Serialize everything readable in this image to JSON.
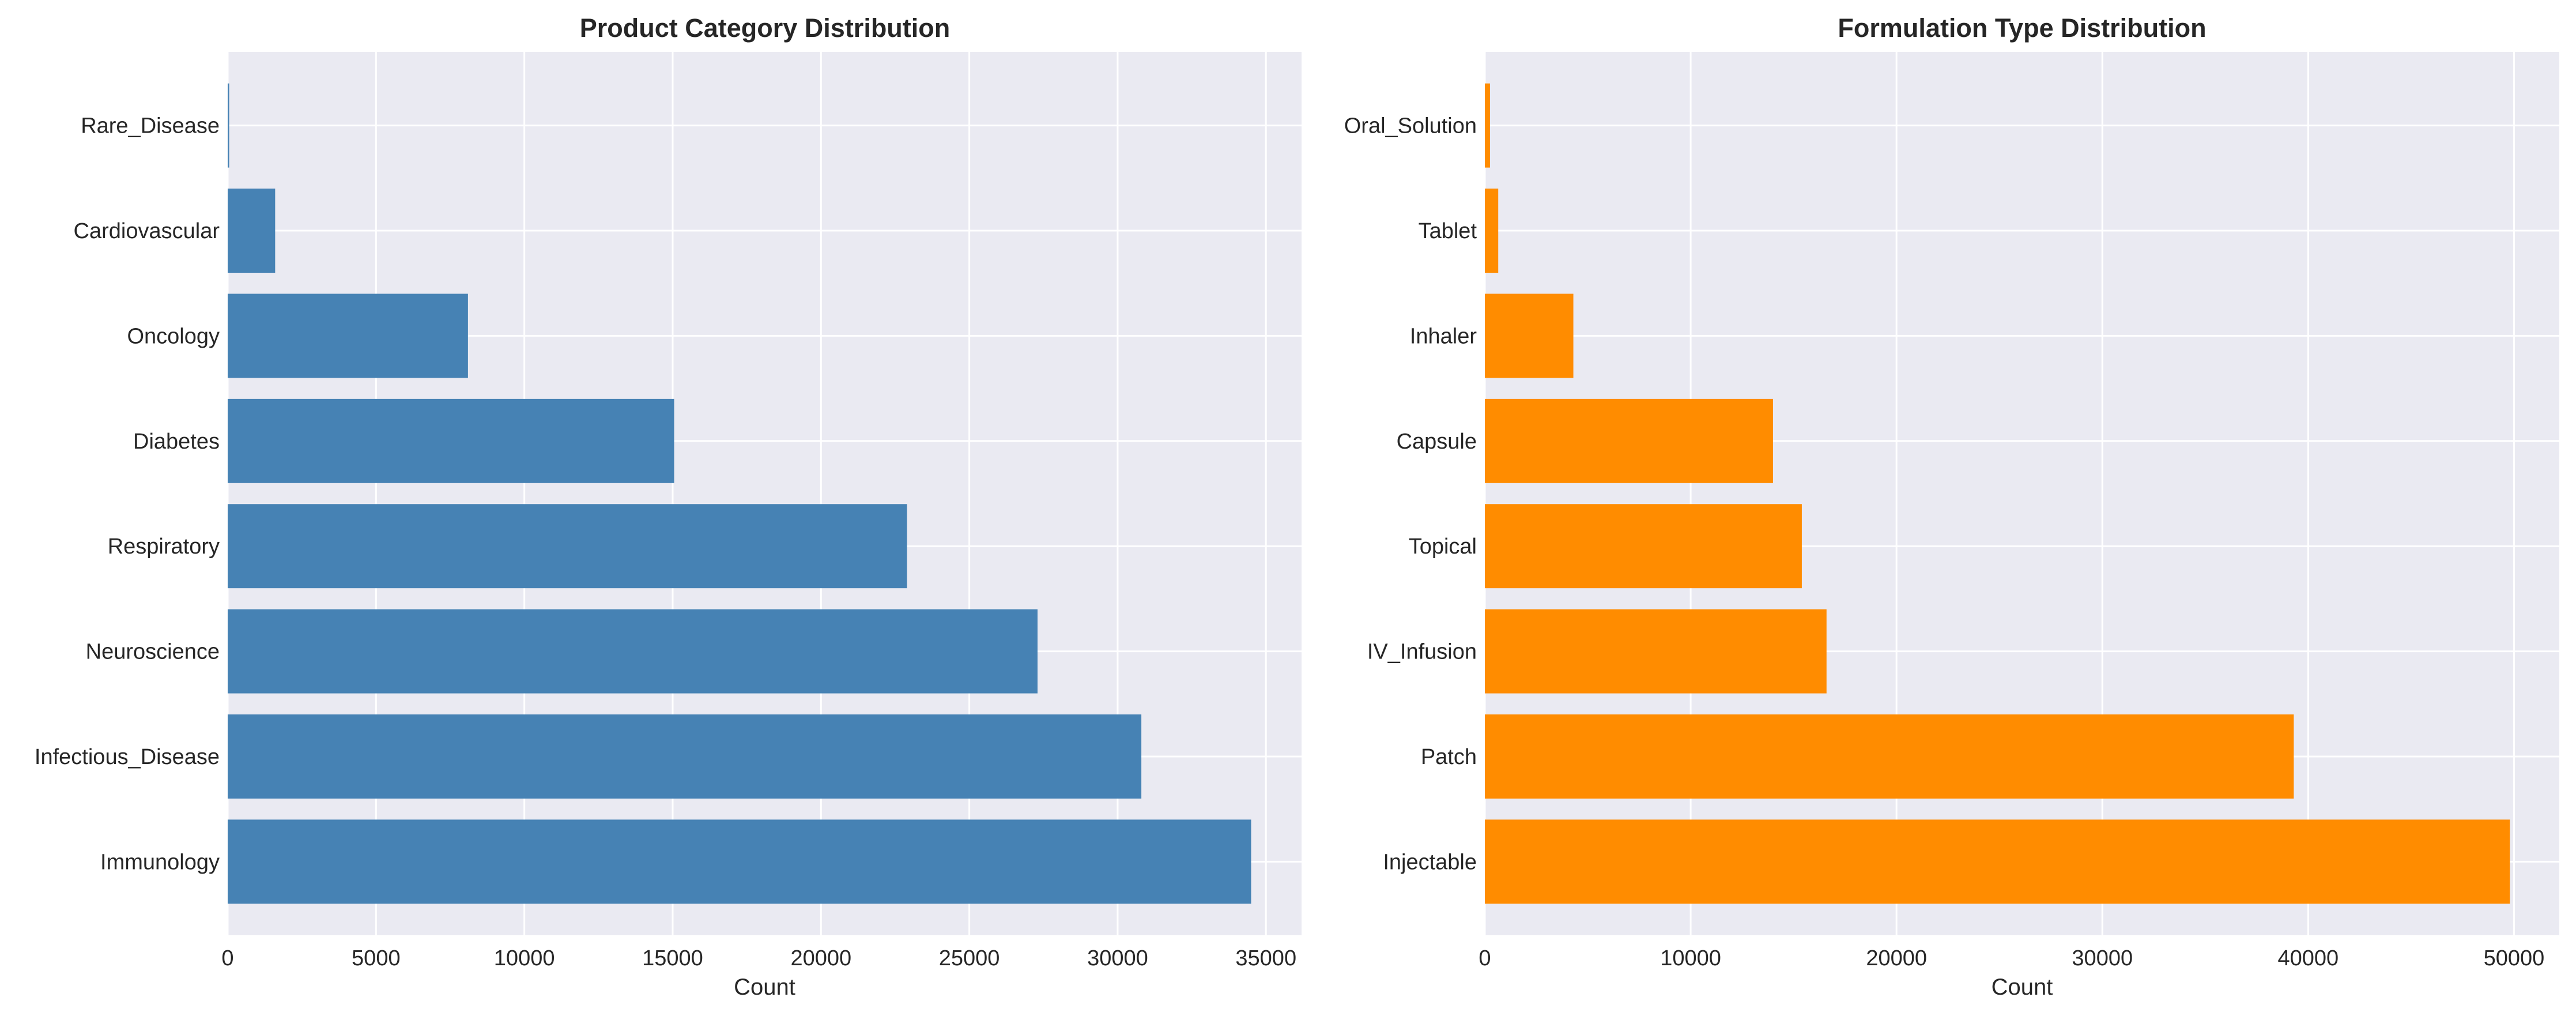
{
  "chart_data": [
    {
      "type": "bar",
      "orientation": "horizontal",
      "title": "Product Category Distribution",
      "xlabel": "Count",
      "ylabel": "",
      "categories": [
        "Immunology",
        "Infectious_Disease",
        "Neuroscience",
        "Respiratory",
        "Diabetes",
        "Oncology",
        "Cardiovascular",
        "Rare_Disease"
      ],
      "values": [
        34500,
        30800,
        27300,
        22900,
        15050,
        8100,
        1600,
        50
      ],
      "xlim": [
        0,
        36200
      ],
      "xticks": [
        0,
        5000,
        10000,
        15000,
        20000,
        25000,
        30000,
        35000
      ],
      "color": "#4682b4",
      "grid": true
    },
    {
      "type": "bar",
      "orientation": "horizontal",
      "title": "Formulation Type Distribution",
      "xlabel": "Count",
      "ylabel": "",
      "categories": [
        "Injectable",
        "Patch",
        "IV_Infusion",
        "Topical",
        "Capsule",
        "Inhaler",
        "Tablet",
        "Oral_Solution"
      ],
      "values": [
        49800,
        39300,
        16600,
        15400,
        14000,
        4300,
        650,
        250
      ],
      "xlim": [
        0,
        52200
      ],
      "xticks": [
        0,
        10000,
        20000,
        30000,
        40000,
        50000
      ],
      "color": "#ff8c00",
      "grid": true
    }
  ]
}
